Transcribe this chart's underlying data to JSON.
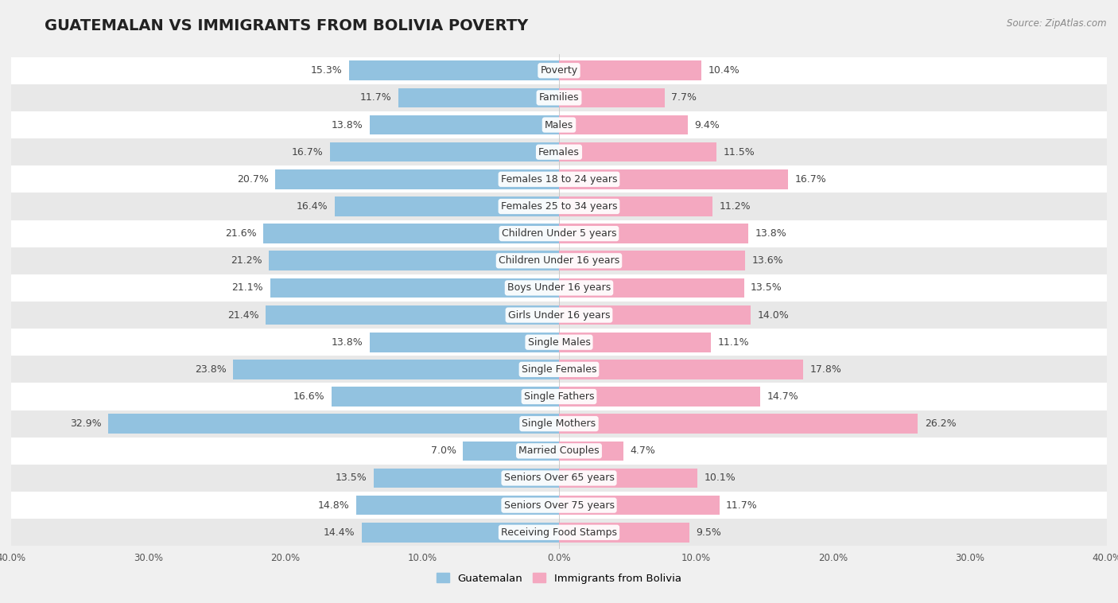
{
  "title": "GUATEMALAN VS IMMIGRANTS FROM BOLIVIA POVERTY",
  "source": "Source: ZipAtlas.com",
  "categories": [
    "Poverty",
    "Families",
    "Males",
    "Females",
    "Females 18 to 24 years",
    "Females 25 to 34 years",
    "Children Under 5 years",
    "Children Under 16 years",
    "Boys Under 16 years",
    "Girls Under 16 years",
    "Single Males",
    "Single Females",
    "Single Fathers",
    "Single Mothers",
    "Married Couples",
    "Seniors Over 65 years",
    "Seniors Over 75 years",
    "Receiving Food Stamps"
  ],
  "guatemalan_values": [
    15.3,
    11.7,
    13.8,
    16.7,
    20.7,
    16.4,
    21.6,
    21.2,
    21.1,
    21.4,
    13.8,
    23.8,
    16.6,
    32.9,
    7.0,
    13.5,
    14.8,
    14.4
  ],
  "bolivia_values": [
    10.4,
    7.7,
    9.4,
    11.5,
    16.7,
    11.2,
    13.8,
    13.6,
    13.5,
    14.0,
    11.1,
    17.8,
    14.7,
    26.2,
    4.7,
    10.1,
    11.7,
    9.5
  ],
  "guatemalan_color": "#92C2E0",
  "bolivia_color": "#F4A8C0",
  "background_color": "#f0f0f0",
  "row_bg_even": "#ffffff",
  "row_bg_odd": "#e8e8e8",
  "axis_max": 40.0,
  "legend_labels": [
    "Guatemalan",
    "Immigrants from Bolivia"
  ],
  "title_fontsize": 14,
  "label_fontsize": 9,
  "value_fontsize": 9
}
